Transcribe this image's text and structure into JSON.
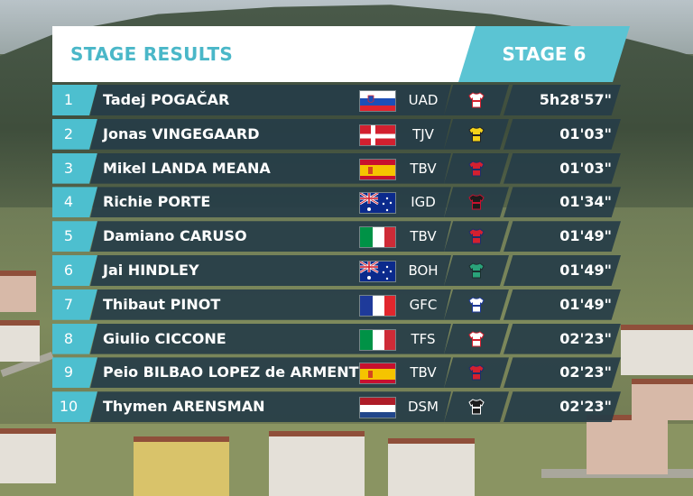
{
  "header": {
    "title": "STAGE RESULTS",
    "stage": "STAGE 6"
  },
  "colors": {
    "accent": "#4dbfcf",
    "row_bg": "#263d48",
    "header_text": "#4ab7c8"
  },
  "results": [
    {
      "rank": "1",
      "name": "Tadej POGAČAR",
      "country_flag": "slovenia-flag",
      "team": "UAD",
      "jersey_icon": "uad-jersey-icon",
      "time": "5h28'57\""
    },
    {
      "rank": "2",
      "name": "Jonas VINGEGAARD",
      "country_flag": "denmark-flag",
      "team": "TJV",
      "jersey_icon": "tjv-jersey-icon",
      "time": "01'03\""
    },
    {
      "rank": "3",
      "name": "Mikel LANDA MEANA",
      "country_flag": "spain-flag",
      "team": "TBV",
      "jersey_icon": "tbv-jersey-icon",
      "time": "01'03\""
    },
    {
      "rank": "4",
      "name": "Richie PORTE",
      "country_flag": "australia-flag",
      "team": "IGD",
      "jersey_icon": "igd-jersey-icon",
      "time": "01'34\""
    },
    {
      "rank": "5",
      "name": "Damiano CARUSO",
      "country_flag": "italy-flag",
      "team": "TBV",
      "jersey_icon": "tbv-jersey-icon",
      "time": "01'49\""
    },
    {
      "rank": "6",
      "name": "Jai HINDLEY",
      "country_flag": "australia-flag",
      "team": "BOH",
      "jersey_icon": "boh-jersey-icon",
      "time": "01'49\""
    },
    {
      "rank": "7",
      "name": "Thibaut PINOT",
      "country_flag": "france-flag",
      "team": "GFC",
      "jersey_icon": "gfc-jersey-icon",
      "time": "01'49\""
    },
    {
      "rank": "8",
      "name": "Giulio CICCONE",
      "country_flag": "italy-flag",
      "team": "TFS",
      "jersey_icon": "tfs-jersey-icon",
      "time": "02'23\""
    },
    {
      "rank": "9",
      "name": "Peio BILBAO LOPEZ de ARMENTIA",
      "country_flag": "spain-flag",
      "team": "TBV",
      "jersey_icon": "tbv-jersey-icon",
      "time": "02'23\""
    },
    {
      "rank": "10",
      "name": "Thymen ARENSMAN",
      "country_flag": "netherlands-flag",
      "team": "DSM",
      "jersey_icon": "dsm-jersey-icon",
      "time": "02'23\""
    }
  ]
}
